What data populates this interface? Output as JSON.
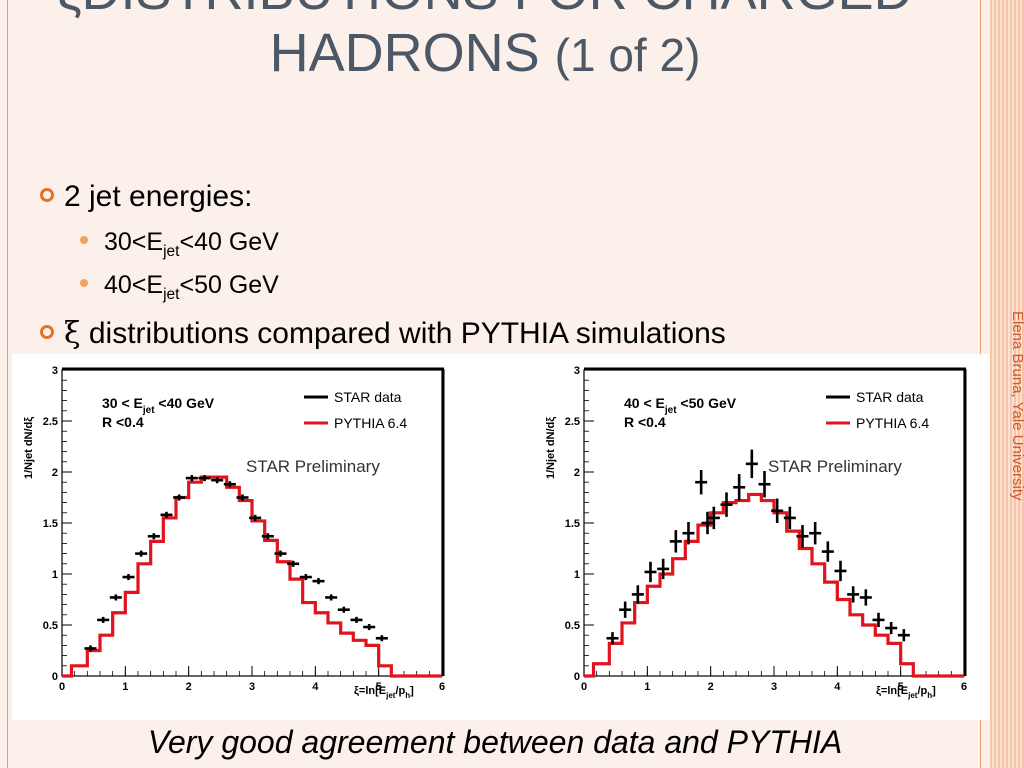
{
  "slide": {
    "title_main": "ξDISTRIBUTIONS FOR CHARGED HADRONS",
    "title_suffix": "(1 of 2)",
    "bullets": [
      {
        "text": "2 jet energies:"
      },
      {
        "pre": "30<E",
        "sub": "jet",
        "post": "<40 GeV"
      },
      {
        "pre": "40<E",
        "sub": "jet",
        "post": "<50 GeV"
      },
      {
        "symbol": "ξ",
        "text": "distributions compared with PYTHIA simulations"
      }
    ],
    "side_text": "Elena Bruna, Yale University",
    "footer": "Very good agreement between data and PYTHIA"
  },
  "colors": {
    "title": "#4d5866",
    "accent": "#e8702a",
    "pythia": "#e0141e",
    "data": "#000000"
  },
  "chart_data": [
    {
      "type": "line",
      "title": "",
      "xlabel_pre": "ξ=ln[E",
      "xlabel_sub1": "jet",
      "xlabel_mid": "/p",
      "xlabel_sub2": "h",
      "xlabel_post": "]",
      "ylabel": "1/Njet dN/dξ",
      "xlim": [
        0,
        6
      ],
      "ylim": [
        0,
        3
      ],
      "xticks": [
        0,
        1,
        2,
        3,
        4,
        5,
        6
      ],
      "yticks": [
        0,
        0.5,
        1,
        1.5,
        2,
        2.5,
        3
      ],
      "ytick_labels": [
        "0",
        "0.5",
        "1",
        "1.5",
        "2",
        "2.5",
        "3"
      ],
      "cut_line1_pre": "30 < E",
      "cut_line1_sub": "jet",
      "cut_line1_post": " <40 GeV",
      "cut_line2": "R <0.4",
      "annotation": "STAR Preliminary",
      "legend": [
        "STAR data",
        "PYTHIA 6.4"
      ],
      "series": [
        {
          "name": "STAR data",
          "kind": "points",
          "x": [
            0.45,
            0.65,
            0.85,
            1.05,
            1.25,
            1.45,
            1.65,
            1.85,
            2.05,
            2.25,
            2.45,
            2.65,
            2.85,
            3.05,
            3.25,
            3.45,
            3.65,
            3.85,
            4.05,
            4.25,
            4.45,
            4.65,
            4.85,
            5.05
          ],
          "y": [
            0.27,
            0.55,
            0.77,
            0.97,
            1.2,
            1.37,
            1.58,
            1.75,
            1.94,
            1.94,
            1.92,
            1.88,
            1.75,
            1.55,
            1.37,
            1.2,
            1.1,
            0.97,
            0.93,
            0.77,
            0.65,
            0.55,
            0.48,
            0.37
          ],
          "yerr": [
            0.02,
            0.02,
            0.02,
            0.02,
            0.02,
            0.02,
            0.02,
            0.02,
            0.02,
            0.02,
            0.02,
            0.02,
            0.02,
            0.02,
            0.02,
            0.02,
            0.02,
            0.02,
            0.02,
            0.02,
            0.02,
            0.02,
            0.02,
            0.02
          ]
        },
        {
          "name": "PYTHIA 6.4",
          "kind": "step",
          "edges": [
            0.0,
            0.15,
            0.4,
            0.6,
            0.8,
            1.0,
            1.2,
            1.4,
            1.6,
            1.8,
            2.0,
            2.2,
            2.4,
            2.6,
            2.8,
            3.0,
            3.2,
            3.4,
            3.6,
            3.8,
            4.0,
            4.2,
            4.4,
            4.6,
            4.8,
            5.0,
            5.2,
            5.5,
            6.0
          ],
          "values": [
            0.0,
            0.1,
            0.25,
            0.4,
            0.62,
            0.82,
            1.1,
            1.32,
            1.55,
            1.75,
            1.9,
            1.95,
            1.95,
            1.85,
            1.72,
            1.52,
            1.33,
            1.12,
            0.95,
            0.72,
            0.62,
            0.52,
            0.42,
            0.35,
            0.3,
            0.1,
            0.0,
            0.0
          ]
        }
      ]
    },
    {
      "type": "line",
      "title": "",
      "xlabel_pre": "ξ=ln[E",
      "xlabel_sub1": "jet",
      "xlabel_mid": "/p",
      "xlabel_sub2": "h",
      "xlabel_post": "]",
      "ylabel": "1/Njet dN/dξ",
      "xlim": [
        0,
        6
      ],
      "ylim": [
        0,
        3
      ],
      "xticks": [
        0,
        1,
        2,
        3,
        4,
        5,
        6
      ],
      "yticks": [
        0,
        0.5,
        1,
        1.5,
        2,
        2.5,
        3
      ],
      "ytick_labels": [
        "0",
        "0.5",
        "1",
        "1.5",
        "2",
        "2.5",
        "3"
      ],
      "cut_line1_pre": "40 < E",
      "cut_line1_sub": "jet",
      "cut_line1_post": " <50 GeV",
      "cut_line2": "R <0.4",
      "annotation": "STAR Preliminary",
      "legend": [
        "STAR data",
        "PYTHIA 6.4"
      ],
      "series": [
        {
          "name": "STAR data",
          "kind": "points",
          "x": [
            0.45,
            0.65,
            0.85,
            1.05,
            1.25,
            1.45,
            1.65,
            1.85,
            1.95,
            2.05,
            2.25,
            2.45,
            2.65,
            2.85,
            3.05,
            3.25,
            3.45,
            3.65,
            3.85,
            4.05,
            4.25,
            4.45,
            4.65,
            4.85,
            5.05
          ],
          "y": [
            0.37,
            0.65,
            0.8,
            1.02,
            1.05,
            1.32,
            1.4,
            1.9,
            1.5,
            1.55,
            1.68,
            1.85,
            2.08,
            1.88,
            1.62,
            1.55,
            1.37,
            1.4,
            1.22,
            1.03,
            0.8,
            0.77,
            0.55,
            0.47,
            0.4
          ],
          "yerr": [
            0.05,
            0.07,
            0.08,
            0.09,
            0.09,
            0.1,
            0.1,
            0.11,
            0.1,
            0.1,
            0.11,
            0.12,
            0.13,
            0.12,
            0.11,
            0.1,
            0.1,
            0.1,
            0.09,
            0.09,
            0.07,
            0.07,
            0.06,
            0.05,
            0.05
          ]
        },
        {
          "name": "PYTHIA 6.4",
          "kind": "step",
          "edges": [
            0.0,
            0.15,
            0.4,
            0.6,
            0.8,
            1.0,
            1.2,
            1.4,
            1.6,
            1.8,
            2.0,
            2.2,
            2.4,
            2.6,
            2.8,
            3.0,
            3.2,
            3.4,
            3.6,
            3.8,
            4.0,
            4.2,
            4.4,
            4.6,
            4.8,
            5.0,
            5.2,
            5.5,
            6.0
          ],
          "values": [
            0.0,
            0.12,
            0.32,
            0.52,
            0.72,
            0.88,
            1.0,
            1.15,
            1.32,
            1.48,
            1.6,
            1.7,
            1.72,
            1.78,
            1.72,
            1.6,
            1.42,
            1.25,
            1.1,
            0.92,
            0.75,
            0.6,
            0.5,
            0.4,
            0.32,
            0.12,
            0.0,
            0.0
          ]
        }
      ]
    }
  ]
}
